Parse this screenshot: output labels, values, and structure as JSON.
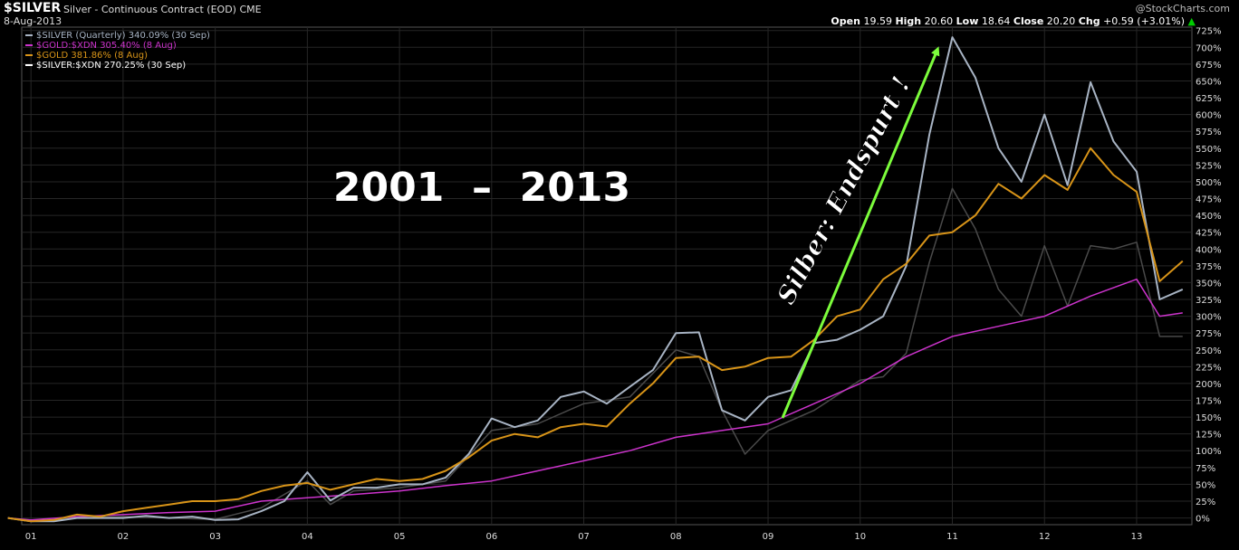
{
  "header": {
    "symbol": "$SILVER",
    "description": "Silver - Continuous Contract (EOD)",
    "exchange": "CME",
    "date": "8-Aug-2013",
    "brand": "@StockCharts.com",
    "open_label": "Open",
    "open": "19.59",
    "high_label": "High",
    "high": "20.60",
    "low_label": "Low",
    "low": "18.64",
    "close_label": "Close",
    "close": "20.20",
    "chg_label": "Chg",
    "chg": "+0.59 (+3.01%)",
    "up_glyph": "▲"
  },
  "annotations": {
    "title": "2001  –  2013",
    "arrow_text": "Silber: Endspurt !",
    "arrow_color": "#7CFC3C"
  },
  "chart_data": {
    "type": "line",
    "ylim": [
      -10,
      730
    ],
    "xlim": [
      0.9,
      13.6
    ],
    "yticks": [
      0,
      25,
      50,
      75,
      100,
      125,
      150,
      175,
      200,
      225,
      250,
      275,
      300,
      325,
      350,
      375,
      400,
      425,
      450,
      475,
      500,
      525,
      550,
      575,
      600,
      625,
      650,
      675,
      700,
      725
    ],
    "x_ticks": [
      1,
      2,
      3,
      4,
      5,
      6,
      7,
      8,
      9,
      10,
      11,
      12,
      13
    ],
    "x_tick_labels": [
      "01",
      "02",
      "03",
      "04",
      "05",
      "06",
      "07",
      "08",
      "09",
      "10",
      "11",
      "12",
      "13"
    ],
    "grid": true,
    "legend_position": "top-left",
    "series": [
      {
        "name": "$SILVER (Quarterly) 340.09% (30 Sep)",
        "color": "#a8b4c4",
        "x": [
          0.75,
          1,
          1.25,
          1.5,
          1.75,
          2,
          2.25,
          2.5,
          2.75,
          3,
          3.25,
          3.5,
          3.75,
          4,
          4.25,
          4.5,
          4.75,
          5,
          5.25,
          5.5,
          5.75,
          6,
          6.25,
          6.5,
          6.75,
          7,
          7.25,
          7.5,
          7.75,
          8,
          8.25,
          8.5,
          8.75,
          9,
          9.25,
          9.5,
          9.75,
          10,
          10.25,
          10.5,
          10.75,
          11,
          11.25,
          11.5,
          11.75,
          12,
          12.25,
          12.5,
          12.75,
          13,
          13.25,
          13.5
        ],
        "y": [
          0,
          -5,
          -5,
          0,
          0,
          0,
          3,
          0,
          2,
          -3,
          -2,
          10,
          25,
          68,
          26,
          45,
          45,
          50,
          50,
          60,
          95,
          148,
          135,
          145,
          180,
          188,
          170,
          195,
          220,
          275,
          276,
          160,
          145,
          180,
          190,
          260,
          265,
          280,
          300,
          375,
          570,
          715,
          655,
          550,
          500,
          600,
          495,
          648,
          560,
          515,
          325,
          340
        ]
      },
      {
        "name": "$GOLD:$XDN 305.40% (8 Aug)",
        "color": "#cc33cc",
        "x": [
          0.75,
          1,
          1.5,
          2,
          2.5,
          3,
          3.5,
          4,
          4.5,
          5,
          5.5,
          6,
          6.5,
          7,
          7.5,
          8,
          8.5,
          9,
          9.5,
          10,
          10.5,
          11,
          11.5,
          12,
          12.5,
          13,
          13.25,
          13.5
        ],
        "y": [
          0,
          -3,
          2,
          5,
          8,
          10,
          25,
          30,
          35,
          40,
          48,
          55,
          70,
          85,
          100,
          120,
          130,
          140,
          170,
          200,
          240,
          270,
          285,
          300,
          330,
          355,
          300,
          305
        ]
      },
      {
        "name": "$GOLD 381.86% (8 Aug)",
        "color": "#d89418",
        "x": [
          0.75,
          1,
          1.25,
          1.5,
          1.75,
          2,
          2.25,
          2.5,
          2.75,
          3,
          3.25,
          3.5,
          3.75,
          4,
          4.25,
          4.5,
          4.75,
          5,
          5.25,
          5.5,
          5.75,
          6,
          6.25,
          6.5,
          6.75,
          7,
          7.25,
          7.5,
          7.75,
          8,
          8.25,
          8.5,
          8.75,
          9,
          9.25,
          9.5,
          9.75,
          10,
          10.25,
          10.5,
          10.75,
          11,
          11.25,
          11.5,
          11.75,
          12,
          12.25,
          12.5,
          12.75,
          13,
          13.25,
          13.5
        ],
        "y": [
          0,
          -5,
          -3,
          5,
          2,
          10,
          15,
          20,
          25,
          25,
          28,
          40,
          48,
          52,
          42,
          50,
          58,
          55,
          58,
          70,
          90,
          115,
          125,
          120,
          135,
          140,
          136,
          170,
          200,
          238,
          240,
          220,
          225,
          238,
          240,
          265,
          300,
          310,
          355,
          378,
          420,
          425,
          450,
          497,
          475,
          510,
          488,
          550,
          510,
          485,
          352,
          382
        ]
      },
      {
        "name": "$SILVER:$XDN 270.25% (30 Sep)",
        "color": "#4a4a4a",
        "x": [
          0.75,
          1,
          1.5,
          2,
          2.5,
          3,
          3.5,
          4,
          4.25,
          4.5,
          5,
          5.5,
          6,
          6.5,
          7,
          7.5,
          8,
          8.25,
          8.5,
          8.75,
          9,
          9.5,
          10,
          10.25,
          10.5,
          10.75,
          11,
          11.25,
          11.5,
          11.75,
          12,
          12.25,
          12.5,
          12.75,
          13,
          13.25,
          13.5
        ],
        "y": [
          0,
          -5,
          0,
          2,
          0,
          -2,
          15,
          55,
          20,
          40,
          45,
          55,
          130,
          140,
          170,
          180,
          250,
          240,
          160,
          95,
          130,
          160,
          205,
          210,
          245,
          380,
          490,
          430,
          340,
          300,
          405,
          315,
          405,
          400,
          410,
          270,
          270
        ]
      }
    ]
  }
}
